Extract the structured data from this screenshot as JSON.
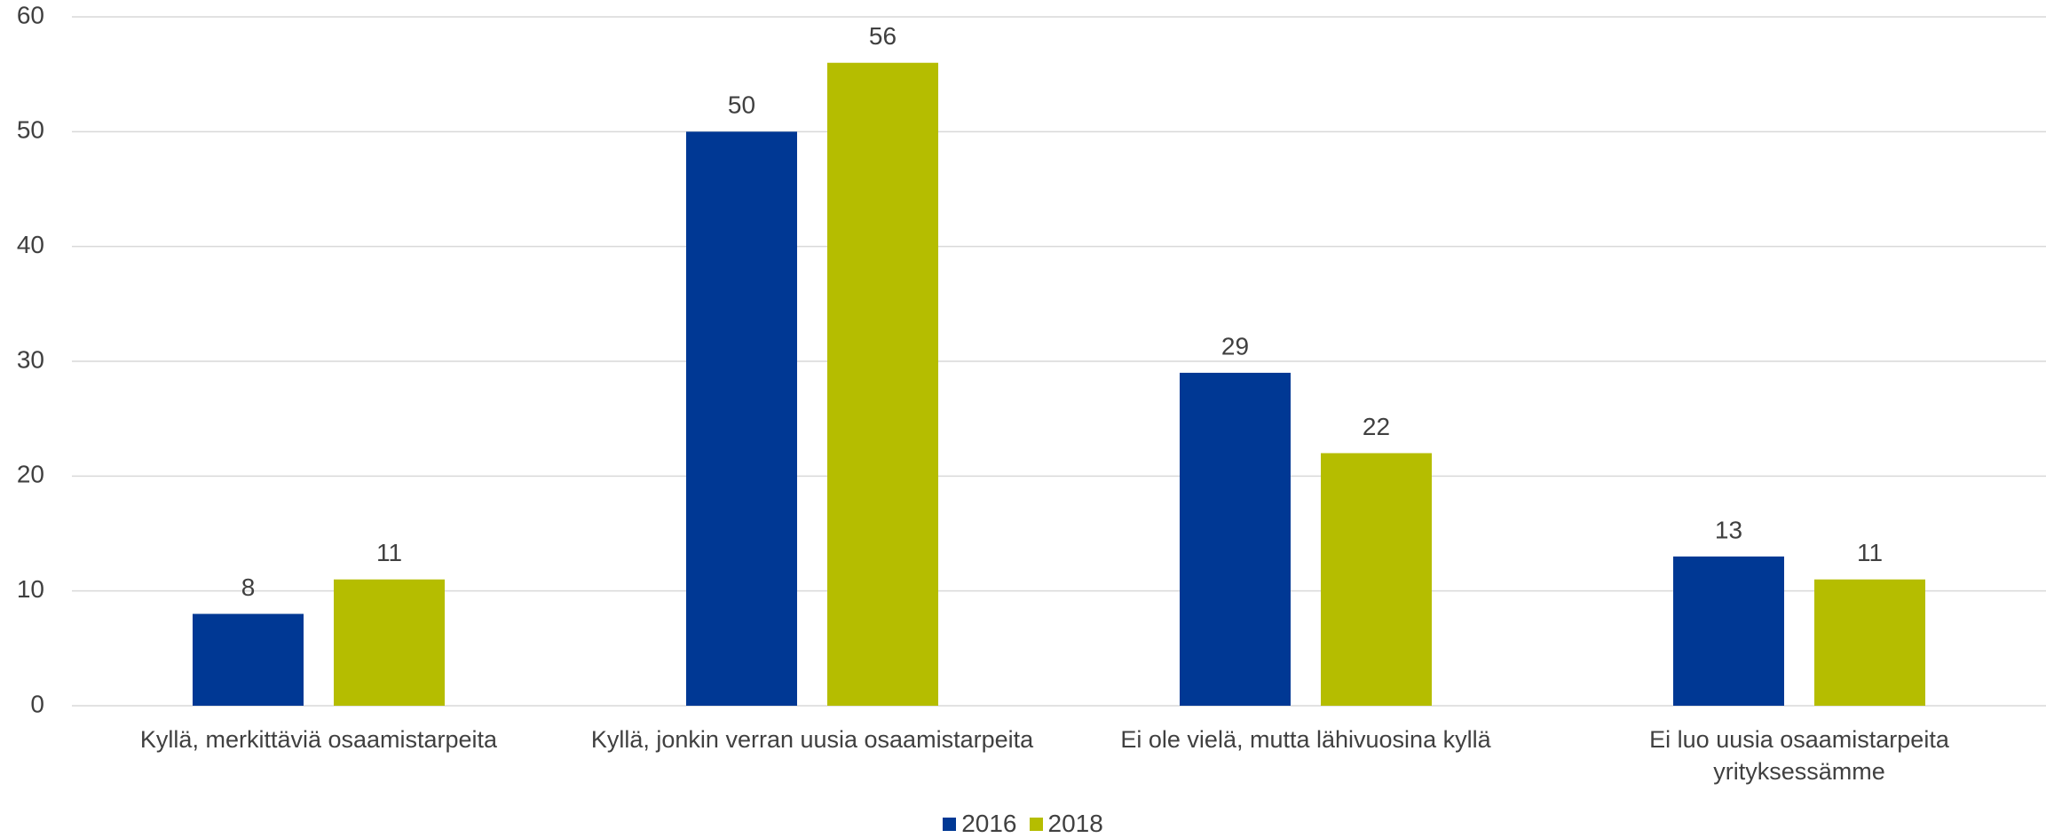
{
  "chart_data": {
    "type": "bar",
    "categories": [
      "Kyllä, merkittäviä osaamistarpeita",
      "Kyllä, jonkin verran uusia osaamistarpeita",
      "Ei ole vielä, mutta lähivuosina kyllä",
      "Ei luo uusia osaamistarpeita yrityksessämme"
    ],
    "series": [
      {
        "name": "2016",
        "color": "#003894",
        "values": [
          8,
          50,
          29,
          13
        ]
      },
      {
        "name": "2018",
        "color": "#b5bd00",
        "values": [
          11,
          56,
          22,
          11
        ]
      }
    ],
    "ylim": [
      0,
      60
    ],
    "yticks": [
      0,
      10,
      20,
      30,
      40,
      50,
      60
    ],
    "grid": true,
    "legend": "bottom"
  }
}
